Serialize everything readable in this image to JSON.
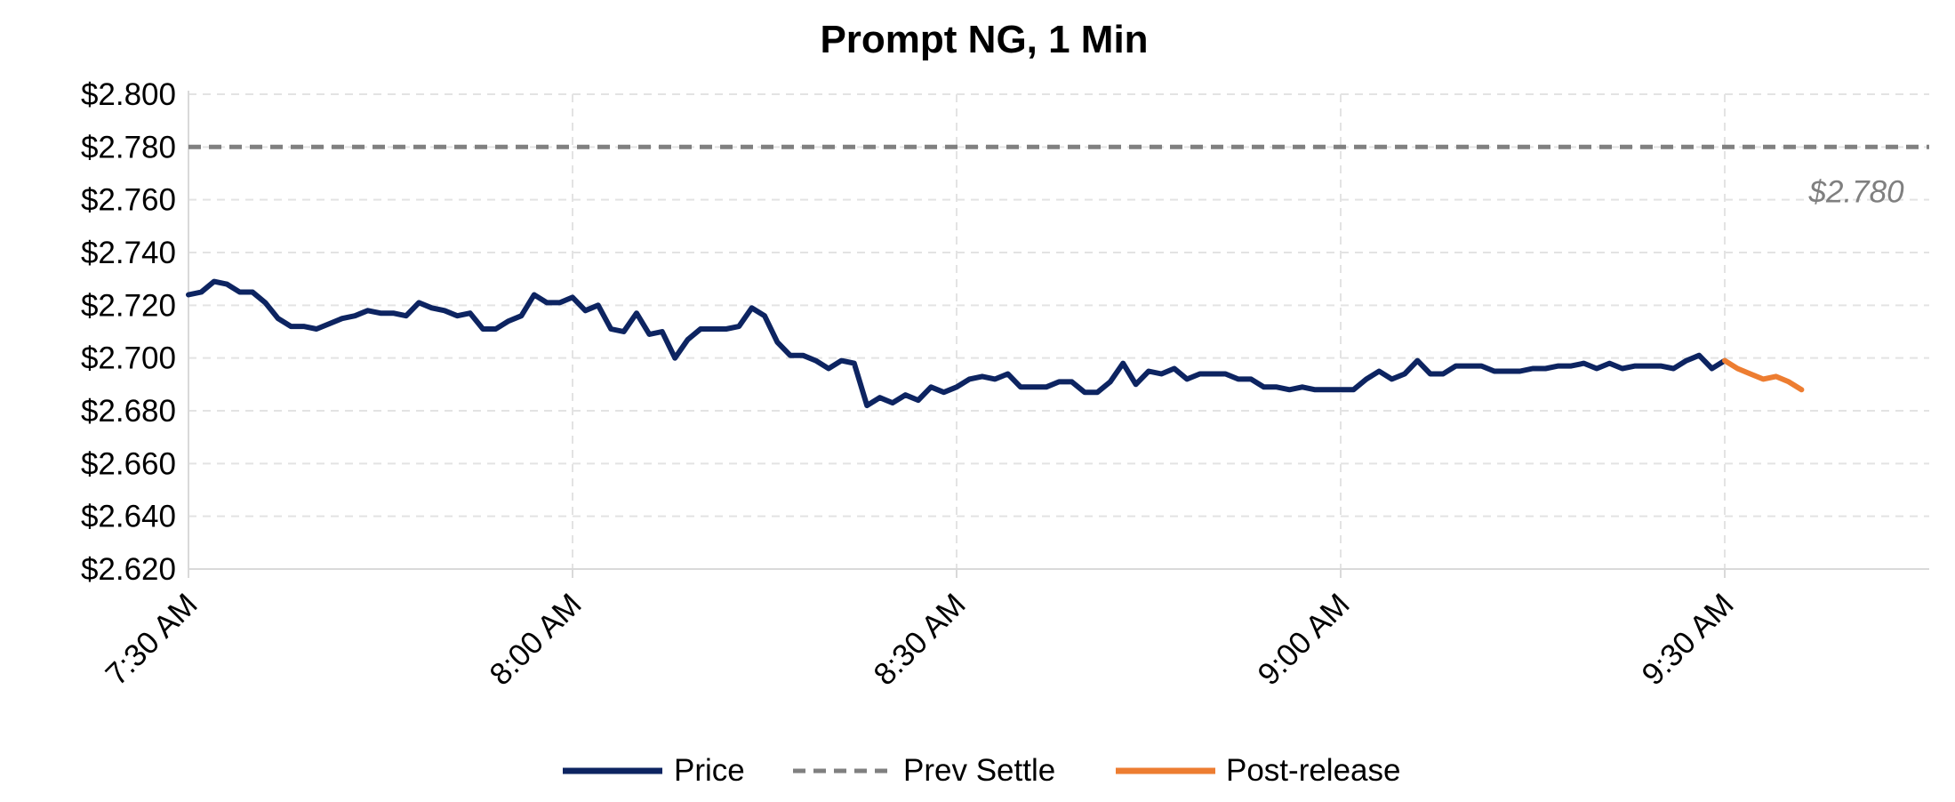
{
  "chart_data": {
    "type": "line",
    "title": "Prompt NG, 1 Min",
    "xlabel": "",
    "ylabel": "",
    "x_unit": "minutes",
    "x_start": "7:30 AM",
    "x_ticks": [
      {
        "t": 0,
        "label": "7:30 AM"
      },
      {
        "t": 30,
        "label": "8:00 AM"
      },
      {
        "t": 60,
        "label": "8:30 AM"
      },
      {
        "t": 90,
        "label": "9:00 AM"
      },
      {
        "t": 120,
        "label": "9:30 AM"
      }
    ],
    "xlim": [
      0,
      136
    ],
    "ylim": [
      2.62,
      2.8
    ],
    "y_ticks": [
      {
        "v": 2.8,
        "label": "$2.800"
      },
      {
        "v": 2.78,
        "label": "$2.780"
      },
      {
        "v": 2.76,
        "label": "$2.760"
      },
      {
        "v": 2.74,
        "label": "$2.740"
      },
      {
        "v": 2.72,
        "label": "$2.720"
      },
      {
        "v": 2.7,
        "label": "$2.700"
      },
      {
        "v": 2.68,
        "label": "$2.680"
      },
      {
        "v": 2.66,
        "label": "$2.660"
      },
      {
        "v": 2.64,
        "label": "$2.640"
      },
      {
        "v": 2.62,
        "label": "$2.620"
      }
    ],
    "grid": true,
    "legend_position": "bottom",
    "series": [
      {
        "name": "Price",
        "color": "#0d2461",
        "style": "solid",
        "x": [
          0,
          1,
          2,
          3,
          4,
          5,
          6,
          7,
          8,
          9,
          10,
          11,
          12,
          13,
          14,
          15,
          16,
          17,
          18,
          19,
          20,
          21,
          22,
          23,
          24,
          25,
          26,
          27,
          28,
          29,
          30,
          31,
          32,
          33,
          34,
          35,
          36,
          37,
          38,
          39,
          40,
          41,
          42,
          43,
          44,
          45,
          46,
          47,
          48,
          49,
          50,
          51,
          52,
          53,
          54,
          55,
          56,
          57,
          58,
          59,
          60,
          61,
          62,
          63,
          64,
          65,
          66,
          67,
          68,
          69,
          70,
          71,
          72,
          73,
          74,
          75,
          76,
          77,
          78,
          79,
          80,
          81,
          82,
          83,
          84,
          85,
          86,
          87,
          88,
          89,
          90,
          91,
          92,
          93,
          94,
          95,
          96,
          97,
          98,
          99,
          100,
          101,
          102,
          103,
          104,
          105,
          106,
          107,
          108,
          109,
          110,
          111,
          112,
          113,
          114,
          115,
          116,
          117,
          118,
          119,
          120
        ],
        "y": [
          2.724,
          2.725,
          2.729,
          2.728,
          2.725,
          2.725,
          2.721,
          2.715,
          2.712,
          2.712,
          2.711,
          2.713,
          2.715,
          2.716,
          2.718,
          2.717,
          2.717,
          2.716,
          2.721,
          2.719,
          2.718,
          2.716,
          2.717,
          2.711,
          2.711,
          2.714,
          2.716,
          2.724,
          2.721,
          2.721,
          2.723,
          2.718,
          2.72,
          2.711,
          2.71,
          2.717,
          2.709,
          2.71,
          2.7,
          2.707,
          2.711,
          2.711,
          2.711,
          2.712,
          2.719,
          2.716,
          2.706,
          2.701,
          2.701,
          2.699,
          2.696,
          2.699,
          2.698,
          2.682,
          2.685,
          2.683,
          2.686,
          2.684,
          2.689,
          2.687,
          2.689,
          2.692,
          2.693,
          2.692,
          2.694,
          2.689,
          2.689,
          2.689,
          2.691,
          2.691,
          2.687,
          2.687,
          2.691,
          2.698,
          2.69,
          2.695,
          2.694,
          2.696,
          2.692,
          2.694,
          2.694,
          2.694,
          2.692,
          2.692,
          2.689,
          2.689,
          2.688,
          2.689,
          2.688,
          2.688,
          2.688,
          2.688,
          2.692,
          2.695,
          2.692,
          2.694,
          2.699,
          2.694,
          2.694,
          2.697,
          2.697,
          2.697,
          2.695,
          2.695,
          2.695,
          2.696,
          2.696,
          2.697,
          2.697,
          2.698,
          2.696,
          2.698,
          2.696,
          2.697,
          2.697,
          2.697,
          2.696,
          2.699,
          2.701,
          2.696,
          2.699
        ]
      },
      {
        "name": "Prev Settle",
        "color": "#808080",
        "style": "dashed",
        "x": [
          0,
          136
        ],
        "y": [
          2.78,
          2.78
        ]
      },
      {
        "name": "Post-release",
        "color": "#ed7d31",
        "style": "solid",
        "x": [
          120,
          121,
          122,
          123,
          124,
          125,
          126
        ],
        "y": [
          2.699,
          2.696,
          2.694,
          2.692,
          2.693,
          2.691,
          2.688
        ]
      }
    ],
    "annotations": [
      {
        "text": "$2.780",
        "x": 134,
        "y": 2.78
      }
    ]
  }
}
